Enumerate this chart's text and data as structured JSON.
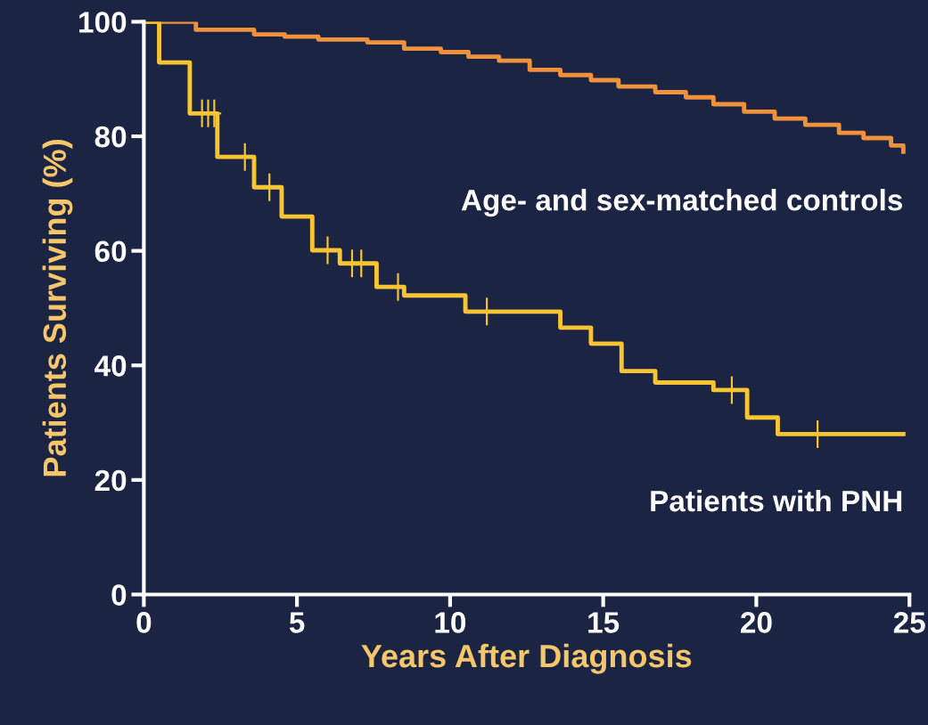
{
  "chart_data": {
    "type": "step",
    "xlabel": "Years After Diagnosis",
    "ylabel": "Patients Surviving (%)",
    "xlim": [
      0,
      25
    ],
    "xticks": [
      0,
      5,
      10,
      15,
      20,
      25
    ],
    "ylim": [
      0,
      100
    ],
    "yticks": [
      0,
      20,
      40,
      60,
      80,
      100
    ],
    "grid": false,
    "legend": false,
    "line_style": "solid",
    "series": [
      {
        "name": "Age- and sex-matched controls",
        "color": "#f0913c",
        "x": [
          0,
          1.7,
          3.6,
          4.6,
          5.7,
          7.3,
          8.5,
          9.7,
          10.6,
          11.6,
          12.6,
          13.6,
          14.6,
          15.5,
          16.7,
          17.7,
          18.6,
          19.6,
          20.6,
          21.6,
          22.7,
          23.5,
          24.4,
          24.8
        ],
        "values": [
          100,
          98.6,
          97.8,
          97.4,
          96.9,
          96.4,
          95.3,
          94.7,
          93.9,
          93.2,
          91.6,
          90.7,
          89.8,
          88.7,
          87.7,
          86.8,
          85.6,
          84.3,
          83.1,
          82,
          80.6,
          79.7,
          78.4,
          77.3
        ]
      },
      {
        "name": "Patients with PNH",
        "color": "#f7c533",
        "x": [
          0,
          0.5,
          1.5,
          2.4,
          3.6,
          4.5,
          5.5,
          6.4,
          7.6,
          8.5,
          10.5,
          13.6,
          14.6,
          15.6,
          16.7,
          18.6,
          19.7,
          20.7,
          24.8
        ],
        "values": [
          100,
          92.9,
          84,
          76.4,
          71.1,
          66,
          60.1,
          57.8,
          53.7,
          52.2,
          49.4,
          46.6,
          43.8,
          39,
          37,
          35.7,
          30.9,
          28,
          28
        ]
      },
      {
        "type": "scatter",
        "marker": "cross",
        "color": "#f7c533",
        "x": [
          1.9,
          2.1,
          2.3,
          3.3,
          4.1,
          6.0,
          6.8,
          7.1,
          8.3,
          11.2,
          19.2,
          22.0
        ],
        "values": [
          84,
          84,
          84,
          76.4,
          71.1,
          60.1,
          57.8,
          57.8,
          53.7,
          49.4,
          35.7,
          28
        ]
      }
    ]
  }
}
